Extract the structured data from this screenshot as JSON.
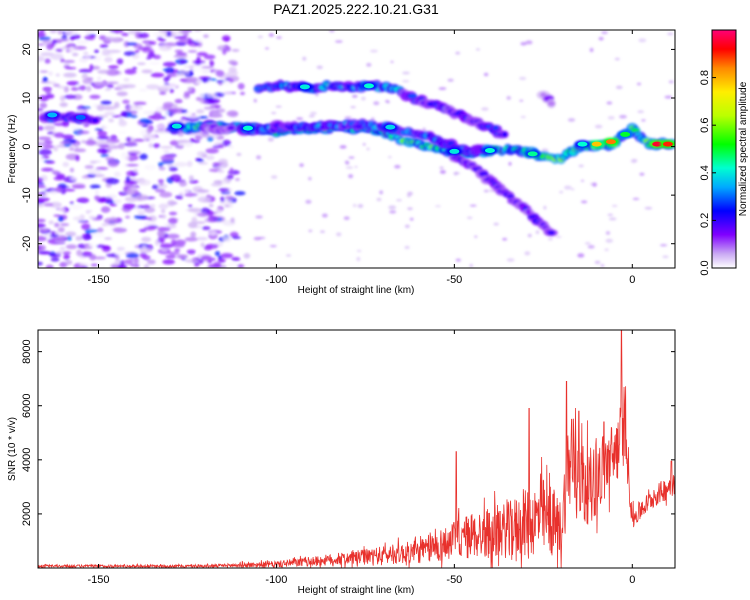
{
  "title": "PAZ1.2025.222.10.21.G31",
  "chart_data": [
    {
      "type": "heatmap",
      "xlabel": "Height of straight line (km)",
      "ylabel": "Frequency (Hz)",
      "xlim": [
        -167,
        12
      ],
      "ylim": [
        -25,
        24
      ],
      "xticks": [
        -150,
        -100,
        -50,
        0
      ],
      "yticks": [
        -20,
        -10,
        0,
        10,
        20
      ],
      "colorbar": {
        "label": "Normalized spectral amplitude",
        "range": [
          0,
          1
        ],
        "ticks": [
          "0.0",
          "0.2",
          "0.4",
          "0.6",
          "0.8"
        ],
        "tick_values": [
          0,
          0.2,
          0.4,
          0.6,
          0.8
        ]
      },
      "tracks": [
        {
          "points": [
            [
              -165,
              6.0
            ],
            [
              -158,
              6.0
            ],
            [
              -150,
              5.5
            ]
          ],
          "amplitude": 0.32
        },
        {
          "points": [
            [
              -125,
              4.0
            ],
            [
              -115,
              4.0
            ],
            [
              -110,
              4.0
            ],
            [
              -105,
              3.6
            ],
            [
              -100,
              3.2
            ],
            [
              -90,
              3.6
            ],
            [
              -85,
              4.0
            ],
            [
              -80,
              4.0
            ],
            [
              -75,
              3.6
            ],
            [
              -70,
              3.0
            ],
            [
              -65,
              1.5
            ],
            [
              -60,
              0.5
            ],
            [
              -55,
              -0.5
            ],
            [
              -50,
              -1.5
            ],
            [
              -45,
              -1.5
            ],
            [
              -40,
              -1.0
            ],
            [
              -35,
              -0.5
            ],
            [
              -30,
              -1.0
            ],
            [
              -25,
              -2.0
            ],
            [
              -20,
              -2.5
            ],
            [
              -15,
              0.0
            ],
            [
              -10,
              0.0
            ],
            [
              -5,
              0.5
            ],
            [
              -3,
              2.0
            ],
            [
              0,
              3.5
            ],
            [
              5,
              0.5
            ],
            [
              12,
              0.5
            ]
          ],
          "amplitude": 0.6
        },
        {
          "points": [
            [
              -110,
              3.5
            ],
            [
              -100,
              4.0
            ],
            [
              -90,
              4.2
            ],
            [
              -80,
              4.5
            ],
            [
              -70,
              4.2
            ],
            [
              -62,
              3.0
            ],
            [
              -55,
              1.5
            ],
            [
              -50,
              0.0
            ],
            [
              -45,
              -1.0
            ],
            [
              -40,
              -0.5
            ]
          ],
          "amplitude": 0.38
        },
        {
          "points": [
            [
              -105,
              12.2
            ],
            [
              -98,
              12.5
            ],
            [
              -92,
              12.0
            ],
            [
              -85,
              12.5
            ],
            [
              -78,
              12.3
            ],
            [
              -70,
              12.3
            ],
            [
              -65,
              11.5
            ]
          ],
          "amplitude": 0.45
        },
        {
          "points": [
            [
              -65,
              11.0
            ],
            [
              -60,
              9.5
            ],
            [
              -55,
              8.5
            ],
            [
              -50,
              7.0
            ],
            [
              -45,
              5.5
            ],
            [
              -40,
              4.0
            ],
            [
              -35,
              2.0
            ]
          ],
          "amplitude": 0.3
        },
        {
          "points": [
            [
              -50,
              -2.0
            ],
            [
              -45,
              -4.0
            ],
            [
              -40,
              -7.0
            ],
            [
              -35,
              -10.0
            ],
            [
              -30,
              -13.0
            ],
            [
              -25,
              -16.5
            ],
            [
              -22,
              -18.5
            ]
          ],
          "amplitude": 0.25
        },
        {
          "points": [
            [
              -120,
              4.0
            ],
            [
              -115,
              3.5
            ],
            [
              -112,
              3.8
            ]
          ],
          "amplitude": 0.2
        },
        {
          "points": [
            [
              -25,
              10.5
            ],
            [
              -22,
              8.5
            ]
          ],
          "amplitude": 0.15
        }
      ],
      "features": [
        {
          "x": 7,
          "y": 0.5,
          "amplitude": 0.95
        },
        {
          "x": 10,
          "y": 0.5,
          "amplitude": 0.9
        },
        {
          "x": -6,
          "y": 1.0,
          "amplitude": 0.85
        },
        {
          "x": -10,
          "y": 0.5,
          "amplitude": 0.78
        },
        {
          "x": -2,
          "y": 2.5,
          "amplitude": 0.5
        },
        {
          "x": -14,
          "y": 0.5,
          "amplitude": 0.42
        },
        {
          "x": -28,
          "y": -1.5,
          "amplitude": 0.45
        },
        {
          "x": -40,
          "y": -0.8,
          "amplitude": 0.42
        },
        {
          "x": -50,
          "y": -1.0,
          "amplitude": 0.4
        },
        {
          "x": -108,
          "y": 3.8,
          "amplitude": 0.42
        },
        {
          "x": -92,
          "y": 12.3,
          "amplitude": 0.4
        },
        {
          "x": -74,
          "y": 12.5,
          "amplitude": 0.42
        },
        {
          "x": -68,
          "y": 4.0,
          "amplitude": 0.38
        },
        {
          "x": -128,
          "y": 4.2,
          "amplitude": 0.4
        },
        {
          "x": -163,
          "y": 6.5,
          "amplitude": 0.35
        },
        {
          "x": -155,
          "y": 6.0,
          "amplitude": 0.3
        }
      ],
      "noise_region": {
        "xmin": -167,
        "xmax": -108,
        "amplitude_max": 0.3
      }
    },
    {
      "type": "line",
      "xlabel": "Height of straight line (km)",
      "ylabel": "SNR (10 * v/v)",
      "xlim": [
        -167,
        12
      ],
      "ylim": [
        0,
        8800
      ],
      "xticks": [
        -150,
        -100,
        -50,
        0
      ],
      "yticks": [
        2000,
        4000,
        6000,
        8000
      ],
      "color": "#e8312c",
      "envelope": [
        {
          "x": -167,
          "base": 70,
          "amp": 60
        },
        {
          "x": -120,
          "base": 70,
          "amp": 60
        },
        {
          "x": -100,
          "base": 140,
          "amp": 150
        },
        {
          "x": -80,
          "base": 350,
          "amp": 300
        },
        {
          "x": -60,
          "base": 600,
          "amp": 550
        },
        {
          "x": -45,
          "base": 1200,
          "amp": 1100
        },
        {
          "x": -35,
          "base": 1400,
          "amp": 1300
        },
        {
          "x": -25,
          "base": 1900,
          "amp": 1800
        },
        {
          "x": -20,
          "base": 1400,
          "amp": 1400
        },
        {
          "x": -18,
          "base": 3800,
          "amp": 2200
        },
        {
          "x": -12,
          "base": 3000,
          "amp": 1800
        },
        {
          "x": -5,
          "base": 4200,
          "amp": 1600
        },
        {
          "x": -2,
          "base": 5200,
          "amp": 1600
        },
        {
          "x": 0,
          "base": 1800,
          "amp": 500
        },
        {
          "x": 5,
          "base": 2500,
          "amp": 450
        },
        {
          "x": 12,
          "base": 3200,
          "amp": 600
        }
      ],
      "peaks": [
        {
          "x": -49.5,
          "y": 4300
        },
        {
          "x": -29,
          "y": 5900
        },
        {
          "x": -18.5,
          "y": 6900
        },
        {
          "x": -17,
          "y": 5500
        },
        {
          "x": -15,
          "y": 5800
        },
        {
          "x": -8,
          "y": 5400
        },
        {
          "x": -3,
          "y": 8800
        },
        {
          "x": 11,
          "y": 3950
        }
      ]
    }
  ]
}
